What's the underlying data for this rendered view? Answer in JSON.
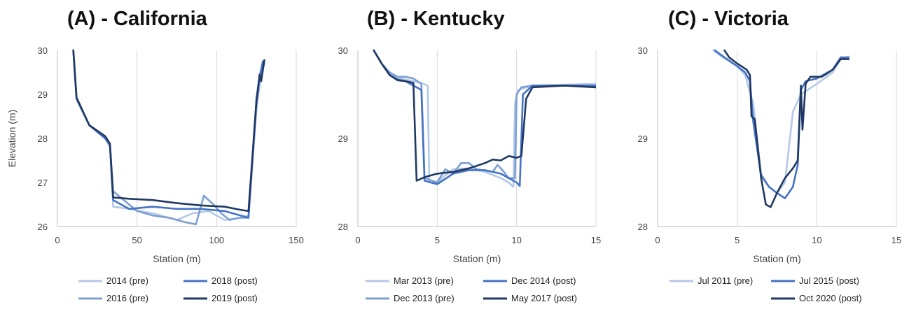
{
  "chart_data": [
    {
      "type": "line",
      "title": "(A) - California",
      "xlabel": "Station (m)",
      "ylabel": "Elevation (m)",
      "xlim": [
        0,
        150
      ],
      "ylim": [
        26,
        30
      ],
      "x_ticks": [
        "0",
        "50",
        "100",
        "150"
      ],
      "y_ticks": [
        "26",
        "27",
        "28",
        "29",
        "30"
      ],
      "grid": "vertical",
      "legend": "bottom",
      "series": [
        {
          "name": "2014 (pre)",
          "color": "#b4c9e7",
          "points": [
            [
              10,
              30
            ],
            [
              12,
              28.9
            ],
            [
              20,
              28.3
            ],
            [
              30,
              28
            ],
            [
              33,
              27.8
            ],
            [
              35,
              26.45
            ],
            [
              45,
              26.4
            ],
            [
              60,
              26.3
            ],
            [
              75,
              26.15
            ],
            [
              85,
              26.3
            ],
            [
              95,
              26.35
            ],
            [
              105,
              26.15
            ],
            [
              115,
              26.2
            ],
            [
              120,
              26.25
            ],
            [
              125,
              28.8
            ],
            [
              128,
              29.5
            ],
            [
              130,
              29.7
            ]
          ]
        },
        {
          "name": "2016 (pre)",
          "color": "#7d9fd3",
          "points": [
            [
              10,
              30
            ],
            [
              12,
              28.9
            ],
            [
              20,
              28.3
            ],
            [
              30,
              28
            ],
            [
              33,
              27.85
            ],
            [
              35,
              26.8
            ],
            [
              45,
              26.5
            ],
            [
              50,
              26.35
            ],
            [
              60,
              26.25
            ],
            [
              70,
              26.2
            ],
            [
              80,
              26.1
            ],
            [
              87,
              26.05
            ],
            [
              92,
              26.7
            ],
            [
              98,
              26.5
            ],
            [
              103,
              26.3
            ],
            [
              108,
              26.15
            ],
            [
              115,
              26.2
            ],
            [
              120,
              26.2
            ],
            [
              125,
              28.7
            ],
            [
              128,
              29.5
            ],
            [
              130,
              29.7
            ]
          ]
        },
        {
          "name": "2018 (post)",
          "color": "#4472c4",
          "points": [
            [
              10,
              30
            ],
            [
              12,
              28.9
            ],
            [
              20,
              28.3
            ],
            [
              30,
              28
            ],
            [
              33,
              27.85
            ],
            [
              35,
              26.6
            ],
            [
              45,
              26.4
            ],
            [
              60,
              26.45
            ],
            [
              75,
              26.4
            ],
            [
              90,
              26.4
            ],
            [
              105,
              26.35
            ],
            [
              115,
              26.25
            ],
            [
              120,
              26.2
            ],
            [
              125,
              28.9
            ],
            [
              127,
              29.4
            ],
            [
              129,
              29.75
            ]
          ]
        },
        {
          "name": "2019 (post)",
          "color": "#1f3864",
          "points": [
            [
              10,
              30
            ],
            [
              12,
              28.93
            ],
            [
              20,
              28.3
            ],
            [
              30,
              28.05
            ],
            [
              33,
              27.88
            ],
            [
              35,
              26.66
            ],
            [
              45,
              26.63
            ],
            [
              60,
              26.6
            ],
            [
              75,
              26.53
            ],
            [
              90,
              26.48
            ],
            [
              105,
              26.45
            ],
            [
              115,
              26.38
            ],
            [
              120,
              26.35
            ],
            [
              125,
              28.85
            ],
            [
              127,
              29.45
            ],
            [
              128,
              29.3
            ],
            [
              130,
              29.78
            ]
          ]
        }
      ]
    },
    {
      "type": "line",
      "title": "(B) - Kentucky",
      "xlabel": "Station (m)",
      "ylabel": "",
      "xlim": [
        0,
        15
      ],
      "ylim": [
        28,
        30
      ],
      "x_ticks": [
        "0",
        "5",
        "10",
        "15"
      ],
      "y_ticks": [
        "28",
        "29",
        "30"
      ],
      "grid": "vertical",
      "legend": "bottom",
      "series": [
        {
          "name": "Mar 2013 (pre)",
          "color": "#b4c9e7",
          "points": [
            [
              1,
              30
            ],
            [
              1.5,
              29.85
            ],
            [
              2,
              29.73
            ],
            [
              2.5,
              29.69
            ],
            [
              3,
              29.67
            ],
            [
              3.5,
              29.65
            ],
            [
              4,
              29.63
            ],
            [
              4.4,
              29.6
            ],
            [
              4.5,
              28.5
            ],
            [
              5,
              28.5
            ],
            [
              5.5,
              28.58
            ],
            [
              6,
              28.65
            ],
            [
              7,
              28.66
            ],
            [
              8,
              28.62
            ],
            [
              9,
              28.55
            ],
            [
              9.5,
              28.5
            ],
            [
              9.8,
              28.45
            ],
            [
              9.9,
              29.4
            ],
            [
              10.1,
              29.55
            ],
            [
              11,
              29.6
            ],
            [
              15,
              29.62
            ]
          ]
        },
        {
          "name": "Dec 2013 (pre)",
          "color": "#7d9fd3",
          "points": [
            [
              1,
              30
            ],
            [
              1.5,
              29.85
            ],
            [
              2,
              29.75
            ],
            [
              2.5,
              29.7
            ],
            [
              3,
              29.7
            ],
            [
              3.5,
              29.68
            ],
            [
              4,
              29.62
            ],
            [
              4.2,
              28.55
            ],
            [
              5,
              28.5
            ],
            [
              5.5,
              28.65
            ],
            [
              6,
              28.6
            ],
            [
              6.5,
              28.72
            ],
            [
              7,
              28.72
            ],
            [
              7.5,
              28.65
            ],
            [
              8.5,
              28.62
            ],
            [
              8.8,
              28.7
            ],
            [
              9.2,
              28.62
            ],
            [
              9.5,
              28.55
            ],
            [
              9.9,
              28.55
            ],
            [
              10,
              29.5
            ],
            [
              10.3,
              29.58
            ],
            [
              11,
              29.6
            ],
            [
              15,
              29.6
            ]
          ]
        },
        {
          "name": "Dec 2014 (post)",
          "color": "#4472c4",
          "points": [
            [
              1,
              30
            ],
            [
              1.5,
              29.85
            ],
            [
              2,
              29.72
            ],
            [
              2.5,
              29.67
            ],
            [
              3,
              29.65
            ],
            [
              3.5,
              29.6
            ],
            [
              4,
              29.55
            ],
            [
              4.2,
              28.52
            ],
            [
              5,
              28.48
            ],
            [
              6,
              28.6
            ],
            [
              7,
              28.64
            ],
            [
              8,
              28.64
            ],
            [
              9,
              28.6
            ],
            [
              10,
              28.5
            ],
            [
              10.2,
              28.46
            ],
            [
              10.4,
              29.5
            ],
            [
              11,
              29.6
            ],
            [
              15,
              29.6
            ]
          ]
        },
        {
          "name": "May 2017 (post)",
          "color": "#1f3864",
          "points": [
            [
              1,
              30
            ],
            [
              1.5,
              29.85
            ],
            [
              2,
              29.72
            ],
            [
              2.5,
              29.66
            ],
            [
              3,
              29.65
            ],
            [
              3.5,
              29.63
            ],
            [
              3.7,
              28.52
            ],
            [
              4.2,
              28.56
            ],
            [
              5,
              28.6
            ],
            [
              6,
              28.62
            ],
            [
              7,
              28.66
            ],
            [
              8,
              28.72
            ],
            [
              8.5,
              28.76
            ],
            [
              9,
              28.75
            ],
            [
              9.5,
              28.8
            ],
            [
              10,
              28.78
            ],
            [
              10.3,
              28.8
            ],
            [
              10.6,
              29.45
            ],
            [
              11,
              29.58
            ],
            [
              13,
              29.6
            ],
            [
              15,
              29.58
            ]
          ]
        }
      ]
    },
    {
      "type": "line",
      "title": "(C) - Victoria",
      "xlabel": "Station (m)",
      "ylabel": "",
      "xlim": [
        0,
        15
      ],
      "ylim": [
        28,
        30
      ],
      "x_ticks": [
        "0",
        "5",
        "10",
        "15"
      ],
      "y_ticks": [
        "28",
        "29",
        "30"
      ],
      "grid": "vertical",
      "legend": "bottom",
      "series": [
        {
          "name": "Jul 2011 (pre)",
          "color": "#b4c9e7",
          "points": [
            [
              3.5,
              30
            ],
            [
              4,
              29.93
            ],
            [
              5,
              29.82
            ],
            [
              5.5,
              29.72
            ],
            [
              6,
              29.4
            ],
            [
              6.5,
              28.6
            ],
            [
              7,
              28.45
            ],
            [
              7.5,
              28.38
            ],
            [
              8,
              28.5
            ],
            [
              8.5,
              29.3
            ],
            [
              9,
              29.5
            ],
            [
              10,
              29.62
            ],
            [
              11,
              29.75
            ],
            [
              11.5,
              29.9
            ],
            [
              12,
              29.93
            ]
          ]
        },
        {
          "name": "Jul 2015 (post)",
          "color": "#4472c4",
          "points": [
            [
              3.6,
              30
            ],
            [
              4.2,
              29.92
            ],
            [
              5,
              29.82
            ],
            [
              5.5,
              29.75
            ],
            [
              5.8,
              29.65
            ],
            [
              6,
              29.2
            ],
            [
              6.5,
              28.58
            ],
            [
              7,
              28.45
            ],
            [
              7.5,
              28.38
            ],
            [
              8,
              28.32
            ],
            [
              8.5,
              28.45
            ],
            [
              8.8,
              28.7
            ],
            [
              9,
              29.55
            ],
            [
              9.3,
              29.65
            ],
            [
              10,
              29.68
            ],
            [
              11,
              29.78
            ],
            [
              11.5,
              29.92
            ],
            [
              12,
              29.92
            ]
          ]
        },
        {
          "name": "Oct 2020 (post)",
          "color": "#1f3864",
          "points": [
            [
              4.2,
              30
            ],
            [
              4.5,
              29.92
            ],
            [
              5,
              29.85
            ],
            [
              5.6,
              29.78
            ],
            [
              5.8,
              29.72
            ],
            [
              5.9,
              29.25
            ],
            [
              6.1,
              29.22
            ],
            [
              6.5,
              28.55
            ],
            [
              6.8,
              28.25
            ],
            [
              7.1,
              28.22
            ],
            [
              7.5,
              28.38
            ],
            [
              8,
              28.55
            ],
            [
              8.5,
              28.66
            ],
            [
              8.8,
              28.75
            ],
            [
              9,
              29.6
            ],
            [
              9.1,
              29.1
            ],
            [
              9.3,
              29.62
            ],
            [
              9.6,
              29.7
            ],
            [
              10.3,
              29.7
            ],
            [
              10.5,
              29.72
            ],
            [
              11,
              29.78
            ],
            [
              11.5,
              29.9
            ],
            [
              12,
              29.9
            ]
          ]
        }
      ]
    }
  ]
}
